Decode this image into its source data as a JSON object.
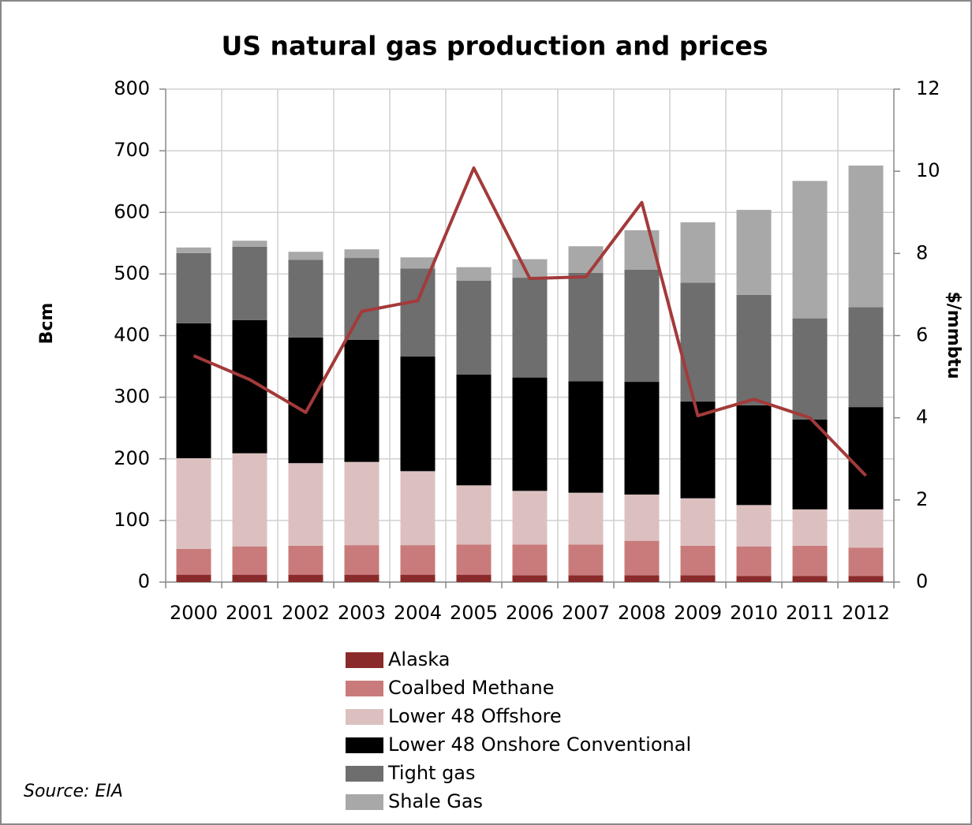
{
  "chart_data": {
    "type": "bar",
    "stacked": true,
    "title": "US natural gas production and prices",
    "ylabel": "Bcm",
    "y2label": "$/mmbtu",
    "source": "Source: EIA",
    "categories": [
      "2000",
      "2001",
      "2002",
      "2003",
      "2004",
      "2005",
      "2006",
      "2007",
      "2008",
      "2009",
      "2010",
      "2011",
      "2012"
    ],
    "series": [
      {
        "name": "Alaska",
        "color": "#8b2a2a",
        "values": [
          12,
          12,
          12,
          12,
          12,
          12,
          11,
          11,
          11,
          11,
          10,
          10,
          10
        ]
      },
      {
        "name": "Coalbed Methane",
        "color": "#c97b7b",
        "values": [
          42,
          46,
          47,
          48,
          48,
          49,
          50,
          50,
          56,
          48,
          48,
          49,
          46
        ]
      },
      {
        "name": "Lower 48 Offshore",
        "color": "#dcc0c0",
        "values": [
          147,
          151,
          134,
          135,
          120,
          96,
          87,
          84,
          75,
          77,
          67,
          59,
          62
        ]
      },
      {
        "name": "Lower 48 Onshore Conventional",
        "color": "#000000",
        "values": [
          219,
          216,
          204,
          198,
          186,
          180,
          184,
          181,
          183,
          157,
          162,
          146,
          166
        ]
      },
      {
        "name": "Tight gas",
        "color": "#6e6e6e",
        "values": [
          114,
          119,
          126,
          133,
          143,
          152,
          162,
          176,
          182,
          193,
          179,
          164,
          162
        ]
      },
      {
        "name": "Shale Gas",
        "color": "#a8a8a8",
        "values": [
          9,
          10,
          13,
          14,
          18,
          22,
          30,
          43,
          64,
          98,
          138,
          223,
          230
        ]
      }
    ],
    "line_series": {
      "type": "line",
      "axis": "y2",
      "color": "#a33a3a",
      "values": [
        5.51,
        4.93,
        4.13,
        6.59,
        6.85,
        10.08,
        7.39,
        7.43,
        9.24,
        4.05,
        4.45,
        4.0,
        2.59
      ]
    },
    "ylim": [
      0,
      800
    ],
    "yticks": [
      0,
      100,
      200,
      300,
      400,
      500,
      600,
      700,
      800
    ],
    "y2lim": [
      0,
      12
    ],
    "y2ticks": [
      0,
      2,
      4,
      6,
      8,
      10,
      12
    ],
    "grid": true
  }
}
